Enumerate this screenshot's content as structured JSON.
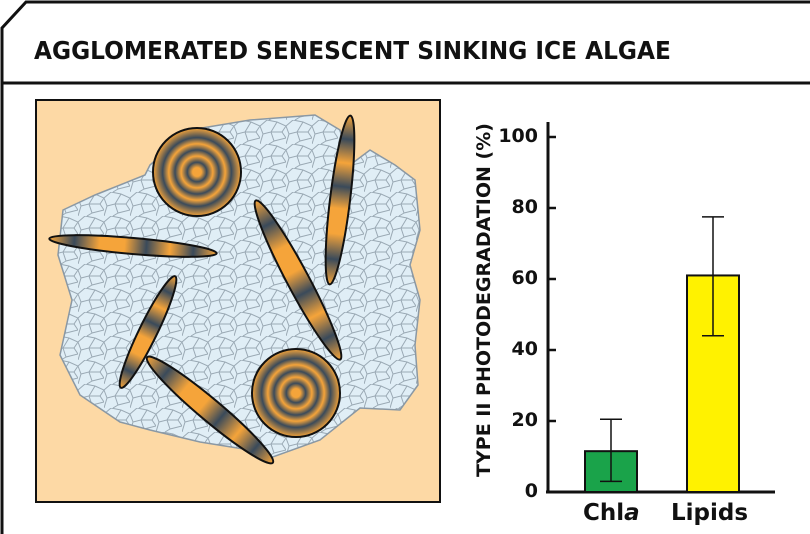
{
  "header": {
    "title": "AGGLOMERATED SENESCENT SINKING ICE ALGAE"
  },
  "colors": {
    "background_panel": "#fdd9a5",
    "ice": "#e0eef6",
    "cell_orange": "#f5a43a",
    "bar_chla": "#1aa34a",
    "bar_lipids": "#fff200"
  },
  "chart_data": {
    "type": "bar",
    "title": "",
    "ylabel": "TYPE II PHOTODEGRADATION (%)",
    "xlabel": "",
    "ylim": [
      0,
      100
    ],
    "yticks": [
      "0",
      "20",
      "40",
      "60",
      "80",
      "100"
    ],
    "categories": [
      {
        "prefix": "Chl",
        "suffix": "a"
      },
      {
        "prefix": "Lipids",
        "suffix": ""
      }
    ],
    "values": [
      11.5,
      61
    ],
    "error_bars": [
      [
        3,
        20.5
      ],
      [
        44,
        77.5
      ]
    ]
  }
}
